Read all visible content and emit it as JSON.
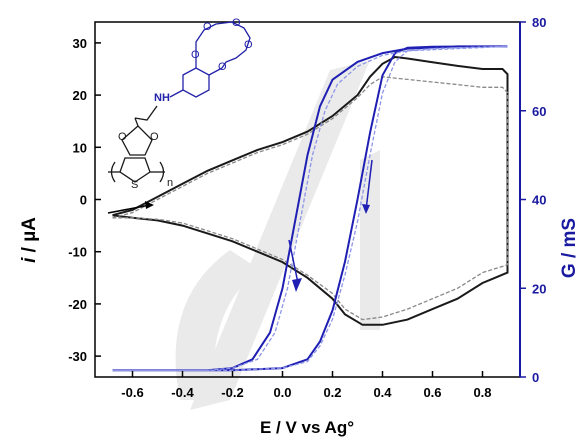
{
  "chart_data": {
    "type": "line",
    "title": "",
    "xlabel": "E / V vs Ag°",
    "ylabel_left_prefix": "i",
    "ylabel_left_suffix": " / µA",
    "ylabel_right": "G / mS",
    "xlim": [
      -0.75,
      0.95
    ],
    "ylim_left": [
      -34,
      34
    ],
    "ylim_right": [
      0,
      80
    ],
    "x_ticks": [
      -0.6,
      -0.4,
      -0.2,
      0.0,
      0.2,
      0.4,
      0.6,
      0.8
    ],
    "x_tick_labels": [
      "-0.6",
      "-0.4",
      "-0.2",
      "0.0",
      "0.2",
      "0.4",
      "0.6",
      "0.8"
    ],
    "y_left_ticks": [
      -30,
      -20,
      -10,
      0,
      10,
      20,
      30
    ],
    "y_left_tick_labels": [
      "-30",
      "-20",
      "-10",
      "0",
      "10",
      "20",
      "30"
    ],
    "y_right_ticks": [
      0,
      20,
      40,
      60,
      80
    ],
    "y_right_tick_labels": [
      "0",
      "20",
      "40",
      "60",
      "80"
    ],
    "grid": false,
    "colors": {
      "current": "#1a1a1a",
      "current_repeat": "#888888",
      "conductance": "#1f1fb4",
      "conductance_repeat": "#8d95e8",
      "axis_right": "#1a1aa0"
    },
    "series": [
      {
        "axis": "left",
        "color_key": "current",
        "points": [
          [
            -0.68,
            -3
          ],
          [
            -0.6,
            -2
          ],
          [
            -0.5,
            0.5
          ],
          [
            -0.4,
            3
          ],
          [
            -0.3,
            5.5
          ],
          [
            -0.2,
            7.5
          ],
          [
            -0.1,
            9.5
          ],
          [
            0.0,
            11
          ],
          [
            0.1,
            13
          ],
          [
            0.2,
            16
          ],
          [
            0.3,
            20
          ],
          [
            0.35,
            23.5
          ],
          [
            0.4,
            26
          ],
          [
            0.45,
            27.3
          ],
          [
            0.5,
            27
          ],
          [
            0.6,
            26.3
          ],
          [
            0.7,
            25.6
          ],
          [
            0.8,
            25
          ],
          [
            0.88,
            25
          ],
          [
            0.9,
            24
          ],
          [
            0.9,
            -14
          ],
          [
            0.85,
            -15
          ],
          [
            0.8,
            -16
          ],
          [
            0.7,
            -19
          ],
          [
            0.6,
            -21
          ],
          [
            0.5,
            -23
          ],
          [
            0.4,
            -24
          ],
          [
            0.32,
            -24
          ],
          [
            0.25,
            -22
          ],
          [
            0.2,
            -19
          ],
          [
            0.1,
            -15
          ],
          [
            0.0,
            -12
          ],
          [
            -0.1,
            -10
          ],
          [
            -0.2,
            -8
          ],
          [
            -0.3,
            -6.5
          ],
          [
            -0.4,
            -5
          ],
          [
            -0.5,
            -4
          ],
          [
            -0.6,
            -3.5
          ],
          [
            -0.68,
            -3
          ]
        ]
      },
      {
        "axis": "left",
        "color_key": "current_repeat",
        "points": [
          [
            -0.68,
            -3.5
          ],
          [
            -0.6,
            -2.5
          ],
          [
            -0.5,
            0
          ],
          [
            -0.4,
            2.5
          ],
          [
            -0.3,
            5
          ],
          [
            -0.2,
            7
          ],
          [
            -0.1,
            9
          ],
          [
            0.0,
            10.5
          ],
          [
            0.1,
            12.5
          ],
          [
            0.2,
            15.5
          ],
          [
            0.3,
            19.5
          ],
          [
            0.35,
            22
          ],
          [
            0.4,
            23.5
          ],
          [
            0.5,
            23
          ],
          [
            0.6,
            22.5
          ],
          [
            0.7,
            22
          ],
          [
            0.8,
            21.5
          ],
          [
            0.88,
            21.5
          ],
          [
            0.9,
            20.5
          ],
          [
            0.9,
            -12.5
          ],
          [
            0.8,
            -14
          ],
          [
            0.7,
            -17
          ],
          [
            0.6,
            -19
          ],
          [
            0.5,
            -21
          ],
          [
            0.4,
            -22.5
          ],
          [
            0.32,
            -23
          ],
          [
            0.25,
            -21
          ],
          [
            0.2,
            -18
          ],
          [
            0.1,
            -14.5
          ],
          [
            0.0,
            -11.5
          ],
          [
            -0.1,
            -9.5
          ],
          [
            -0.2,
            -7.5
          ],
          [
            -0.3,
            -6
          ],
          [
            -0.4,
            -4.5
          ],
          [
            -0.5,
            -3.8
          ],
          [
            -0.6,
            -3.5
          ],
          [
            -0.68,
            -3.5
          ]
        ]
      },
      {
        "axis": "right",
        "color_key": "conductance",
        "points": [
          [
            -0.68,
            1.5
          ],
          [
            -0.3,
            1.5
          ],
          [
            -0.2,
            2
          ],
          [
            -0.12,
            4
          ],
          [
            -0.05,
            10
          ],
          [
            0.0,
            20
          ],
          [
            0.05,
            35
          ],
          [
            0.1,
            50
          ],
          [
            0.15,
            61
          ],
          [
            0.2,
            67
          ],
          [
            0.3,
            71
          ],
          [
            0.4,
            73
          ],
          [
            0.5,
            74
          ],
          [
            0.7,
            74.5
          ],
          [
            0.9,
            74.5
          ],
          [
            0.75,
            74.5
          ],
          [
            0.6,
            74.4
          ],
          [
            0.5,
            74.2
          ],
          [
            0.45,
            73
          ],
          [
            0.4,
            68
          ],
          [
            0.35,
            55
          ],
          [
            0.3,
            40
          ],
          [
            0.25,
            26
          ],
          [
            0.2,
            15
          ],
          [
            0.15,
            8
          ],
          [
            0.1,
            4
          ],
          [
            0.0,
            2
          ],
          [
            -0.2,
            1.5
          ],
          [
            -0.68,
            1.5
          ]
        ]
      },
      {
        "axis": "right",
        "color_key": "conductance_repeat",
        "points": [
          [
            -0.68,
            1.5
          ],
          [
            -0.3,
            1.5
          ],
          [
            -0.2,
            2
          ],
          [
            -0.1,
            4
          ],
          [
            -0.03,
            10
          ],
          [
            0.02,
            20
          ],
          [
            0.07,
            35
          ],
          [
            0.12,
            50
          ],
          [
            0.17,
            60
          ],
          [
            0.22,
            66
          ],
          [
            0.3,
            70
          ],
          [
            0.4,
            72.5
          ],
          [
            0.5,
            73.5
          ],
          [
            0.7,
            74
          ],
          [
            0.9,
            74.5
          ],
          [
            0.75,
            74.3
          ],
          [
            0.6,
            74
          ],
          [
            0.5,
            73.5
          ],
          [
            0.45,
            71
          ],
          [
            0.4,
            64
          ],
          [
            0.35,
            50
          ],
          [
            0.3,
            35
          ],
          [
            0.25,
            23
          ],
          [
            0.2,
            13
          ],
          [
            0.15,
            7
          ],
          [
            0.1,
            3.5
          ],
          [
            0.0,
            2
          ],
          [
            -0.2,
            1.5
          ],
          [
            -0.68,
            1.5
          ]
        ]
      }
    ],
    "molecule": {
      "nh_label": "NH",
      "o_label": "O",
      "s_label": "S",
      "n_label": "n"
    }
  }
}
